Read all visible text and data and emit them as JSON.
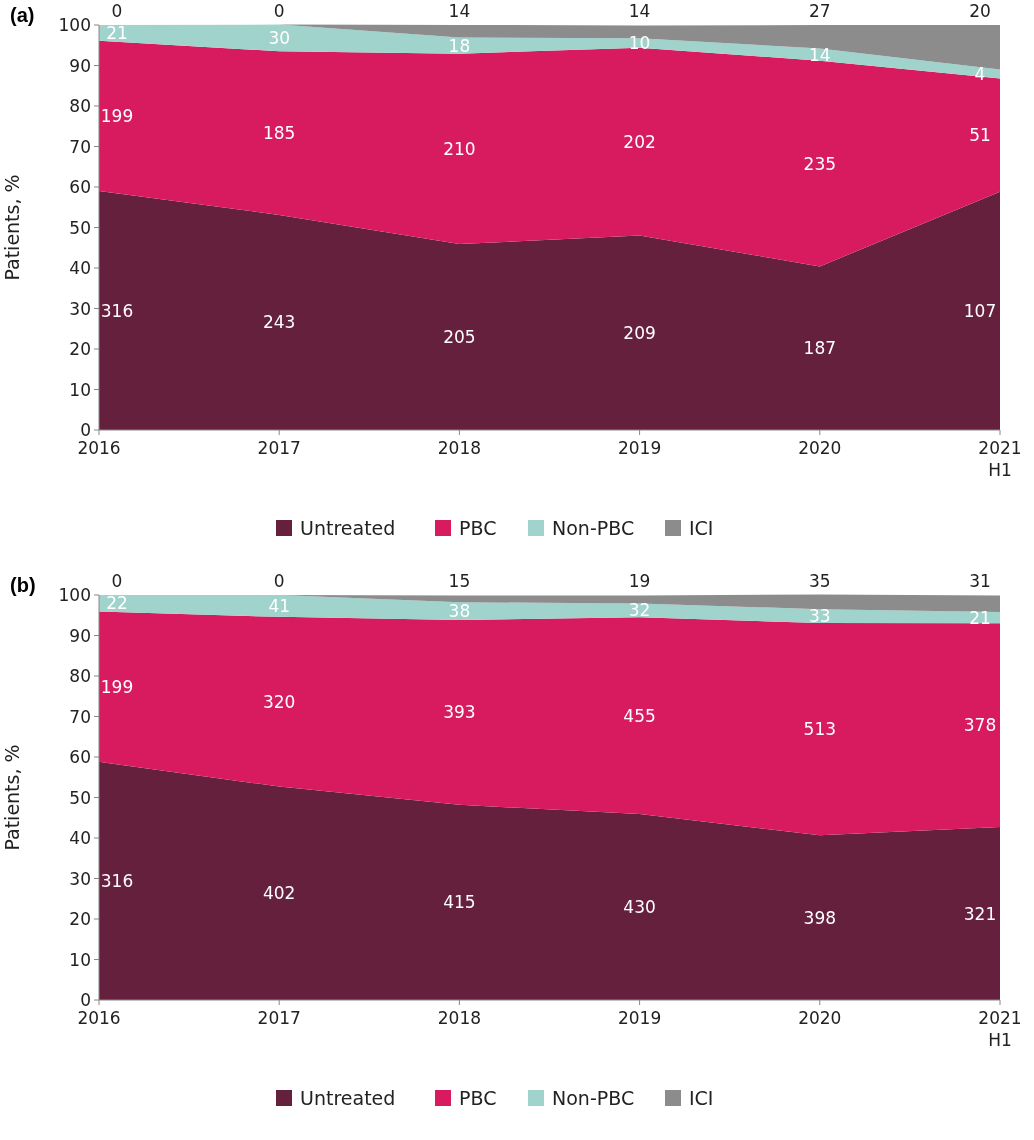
{
  "chart_data": [
    {
      "type": "area",
      "stacked": true,
      "title": "(a)",
      "ylabel": "Patients, %",
      "categories": [
        "2016",
        "2017",
        "2018",
        "2019",
        "2020",
        "2021\nH1"
      ],
      "ylim": [
        0,
        100
      ],
      "yticks": [
        0,
        10,
        20,
        30,
        40,
        50,
        60,
        70,
        80,
        90,
        100
      ],
      "legend": "bottom",
      "grid": false,
      "series": [
        {
          "name": "Untreated",
          "color": "#65203d",
          "values": [
            59.0,
            53.1,
            45.9,
            48.0,
            40.4,
            58.8
          ]
        },
        {
          "name": "PBC",
          "color": "#d81b5e",
          "values": [
            37.1,
            40.4,
            47.0,
            46.4,
            50.8,
            28.0
          ]
        },
        {
          "name": "Non-PBC",
          "color": "#9fd3cc",
          "values": [
            3.9,
            6.6,
            4.0,
            2.3,
            3.0,
            2.2
          ]
        },
        {
          "name": "ICI",
          "color": "#8c8c8c",
          "values": [
            0,
            0,
            3.1,
            3.2,
            5.8,
            11.0
          ]
        }
      ],
      "annotations": [
        "316",
        "243",
        "205",
        "209",
        "187",
        "107",
        "199",
        "185",
        "210",
        "202",
        "235",
        "51",
        "21",
        "30",
        "18",
        "10",
        "14",
        "4",
        "0",
        "0",
        "14",
        "14",
        "27",
        "20"
      ]
    },
    {
      "type": "area",
      "stacked": true,
      "title": "(b)",
      "ylabel": "Patients, %",
      "categories": [
        "2016",
        "2017",
        "2018",
        "2019",
        "2020",
        "2021\nH1"
      ],
      "ylim": [
        0,
        100
      ],
      "yticks": [
        0,
        10,
        20,
        30,
        40,
        50,
        60,
        70,
        80,
        90,
        100
      ],
      "legend": "bottom",
      "grid": false,
      "series": [
        {
          "name": "Untreated",
          "color": "#65203d",
          "values": [
            58.8,
            52.7,
            48.2,
            45.9,
            40.7,
            42.7
          ]
        },
        {
          "name": "PBC",
          "color": "#d81b5e",
          "values": [
            37.1,
            41.9,
            45.6,
            48.6,
            52.4,
            50.3
          ]
        },
        {
          "name": "Non-PBC",
          "color": "#9fd3cc",
          "values": [
            4.1,
            5.4,
            4.4,
            3.4,
            3.4,
            2.8
          ]
        },
        {
          "name": "ICI",
          "color": "#8c8c8c",
          "values": [
            0,
            0,
            1.7,
            2.0,
            3.6,
            4.1
          ]
        }
      ],
      "annotations": [
        "316",
        "402",
        "415",
        "430",
        "398",
        "321",
        "199",
        "320",
        "393",
        "455",
        "513",
        "378",
        "22",
        "41",
        "38",
        "32",
        "33",
        "21",
        "0",
        "0",
        "15",
        "19",
        "35",
        "31"
      ]
    }
  ]
}
